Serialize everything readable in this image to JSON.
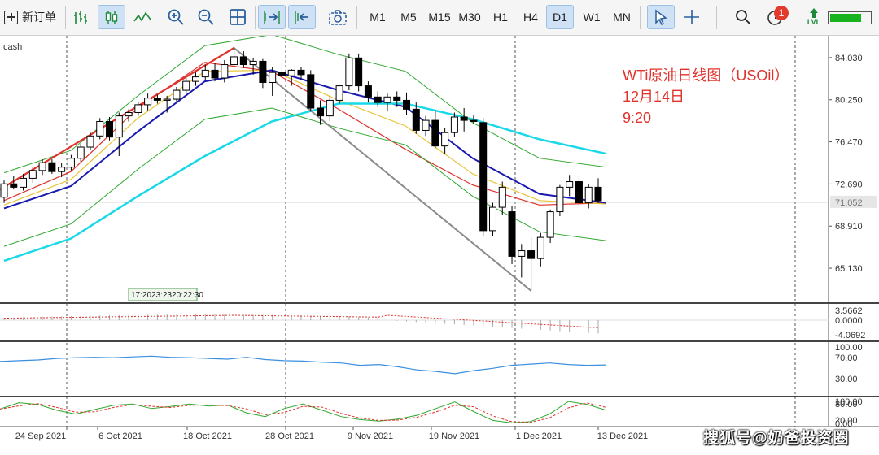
{
  "toolbar": {
    "new_order_label": "新订单",
    "timeframes": [
      "M1",
      "M5",
      "M15",
      "M30",
      "H1",
      "H4",
      "D1",
      "W1",
      "MN"
    ],
    "active_timeframe": "D1",
    "notification_count": "1",
    "level_label": "LVL",
    "level_fraction": 0.8
  },
  "chart": {
    "symbol_label": "cash",
    "annotation_title": "WTi原油日线图（USOil）",
    "annotation_date": "12月14日",
    "annotation_time": "9:20",
    "tick_strip": "17:2023:2320:22:30",
    "watermark": "搜狐号@奶爸投资圈"
  },
  "colors": {
    "candle_up": "#000000",
    "candle_down": "#000000",
    "ma_red": "#e0312b",
    "ma_yellow": "#e8c438",
    "ma_blue": "#1a1ab0",
    "ma_cyan": "#19d9e8",
    "bands": "#2fa82f",
    "trend_red": "#e0312b",
    "trend_gray": "#8a8a8a",
    "osc_blue": "#3b8fe0",
    "osc_red": "#e0312b",
    "annotation": "#e0312b",
    "toolbar_active": "#cfe2f5"
  },
  "chart_data": {
    "type": "candlestick",
    "x_tick_labels": [
      "24 Sep 2021",
      "6 Oct 2021",
      "18 Oct 2021",
      "28 Oct 2021",
      "9 Nov 2021",
      "19 Nov 2021",
      "1 Dec 2021",
      "13 Dec 2021"
    ],
    "price_axis_labels": [
      "84.030",
      "80.250",
      "76.470",
      "72.690",
      "68.910",
      "65.130"
    ],
    "last_price": "71.052",
    "ylim": [
      62.0,
      85.7
    ],
    "candles": [
      [
        71.5,
        73.0,
        71.0,
        72.7
      ],
      [
        72.7,
        73.4,
        72.2,
        72.4
      ],
      [
        72.4,
        73.6,
        72.1,
        73.2
      ],
      [
        73.2,
        74.2,
        72.8,
        73.9
      ],
      [
        73.9,
        74.9,
        73.5,
        74.6
      ],
      [
        74.6,
        74.9,
        73.6,
        73.8
      ],
      [
        73.8,
        74.6,
        73.3,
        74.2
      ],
      [
        74.2,
        75.3,
        73.9,
        75.0
      ],
      [
        75.0,
        76.3,
        74.7,
        76.0
      ],
      [
        76.0,
        77.3,
        75.7,
        77.0
      ],
      [
        77.0,
        78.6,
        76.7,
        78.3
      ],
      [
        78.3,
        78.7,
        76.6,
        76.9
      ],
      [
        76.9,
        79.1,
        75.2,
        78.8
      ],
      [
        78.8,
        79.4,
        78.3,
        79.1
      ],
      [
        79.1,
        80.1,
        78.8,
        79.8
      ],
      [
        79.8,
        80.8,
        79.3,
        80.4
      ],
      [
        80.4,
        80.7,
        79.9,
        80.2
      ],
      [
        80.2,
        80.6,
        79.1,
        80.3
      ],
      [
        80.3,
        81.4,
        80.1,
        81.1
      ],
      [
        81.1,
        82.2,
        80.8,
        81.9
      ],
      [
        81.9,
        82.7,
        81.5,
        82.3
      ],
      [
        82.3,
        83.4,
        82.0,
        82.9
      ],
      [
        82.9,
        83.5,
        81.9,
        82.2
      ],
      [
        82.2,
        83.8,
        81.8,
        83.4
      ],
      [
        83.4,
        84.9,
        83.1,
        84.1
      ],
      [
        84.1,
        84.6,
        83.1,
        83.4
      ],
      [
        83.4,
        84.0,
        82.5,
        83.7
      ],
      [
        83.7,
        83.9,
        81.3,
        81.8
      ],
      [
        81.8,
        83.2,
        80.6,
        82.7
      ],
      [
        82.7,
        83.5,
        82.0,
        82.4
      ],
      [
        82.4,
        83.0,
        81.5,
        82.9
      ],
      [
        82.9,
        83.2,
        82.1,
        82.5
      ],
      [
        82.5,
        82.9,
        79.2,
        79.5
      ],
      [
        79.5,
        80.2,
        78.0,
        78.8
      ],
      [
        78.8,
        80.6,
        78.3,
        80.2
      ],
      [
        80.2,
        81.6,
        79.9,
        81.5
      ],
      [
        81.5,
        84.4,
        81.1,
        84.0
      ],
      [
        84.0,
        84.4,
        81.0,
        81.5
      ],
      [
        81.5,
        81.9,
        80.0,
        80.5
      ],
      [
        80.5,
        81.0,
        79.6,
        80.0
      ],
      [
        80.0,
        80.8,
        79.2,
        80.5
      ],
      [
        80.5,
        81.0,
        79.6,
        80.2
      ],
      [
        80.2,
        80.9,
        78.9,
        79.4
      ],
      [
        79.4,
        80.0,
        77.2,
        77.5
      ],
      [
        77.5,
        78.8,
        77.0,
        78.4
      ],
      [
        78.4,
        79.2,
        75.9,
        76.1
      ],
      [
        76.1,
        77.7,
        75.4,
        77.3
      ],
      [
        77.3,
        79.1,
        76.9,
        78.7
      ],
      [
        78.7,
        79.5,
        77.4,
        78.4
      ],
      [
        78.4,
        78.9,
        78.1,
        78.3
      ],
      [
        78.2,
        78.6,
        68.0,
        68.5
      ],
      [
        68.5,
        71.0,
        68.0,
        70.6
      ],
      [
        70.6,
        72.9,
        69.9,
        72.4
      ],
      [
        70.2,
        70.7,
        65.5,
        66.2
      ],
      [
        66.2,
        67.3,
        64.3,
        66.7
      ],
      [
        66.7,
        67.9,
        63.1,
        66.0
      ],
      [
        66.0,
        68.3,
        65.3,
        67.9
      ],
      [
        67.9,
        70.4,
        67.4,
        70.2
      ],
      [
        70.2,
        72.6,
        69.8,
        72.4
      ],
      [
        72.4,
        73.5,
        71.6,
        72.9
      ],
      [
        72.9,
        73.4,
        70.6,
        71.0
      ],
      [
        71.0,
        72.7,
        70.5,
        72.4
      ],
      [
        72.4,
        73.2,
        71.0,
        71.2
      ]
    ],
    "overlay_series": [
      {
        "values": [
          71.2,
          73.8,
          79.5,
          83.6,
          82.8,
          79.4,
          75.8,
          72.6,
          70.8,
          71.0
        ]
      },
      {
        "values": [
          70.8,
          73.1,
          78.6,
          82.8,
          82.9,
          80.2,
          77.9,
          73.6,
          71.2,
          70.9
        ]
      },
      {
        "values": [
          70.5,
          72.5,
          77.4,
          81.9,
          82.9,
          81.1,
          79.6,
          75.0,
          71.8,
          71.0
        ]
      },
      {
        "values": [
          65.8,
          67.8,
          71.6,
          75.2,
          78.3,
          79.9,
          79.9,
          78.5,
          76.7,
          75.4
        ]
      }
    ],
    "macd_axis_labels": [
      "3.5662",
      "0.0000",
      "-4.0692"
    ],
    "rsi_axis_labels": [
      "100.00",
      "70.00",
      "30.00"
    ],
    "stoch_axis_labels": [
      "100.00",
      "80.00",
      "20.00",
      "0.00"
    ]
  }
}
